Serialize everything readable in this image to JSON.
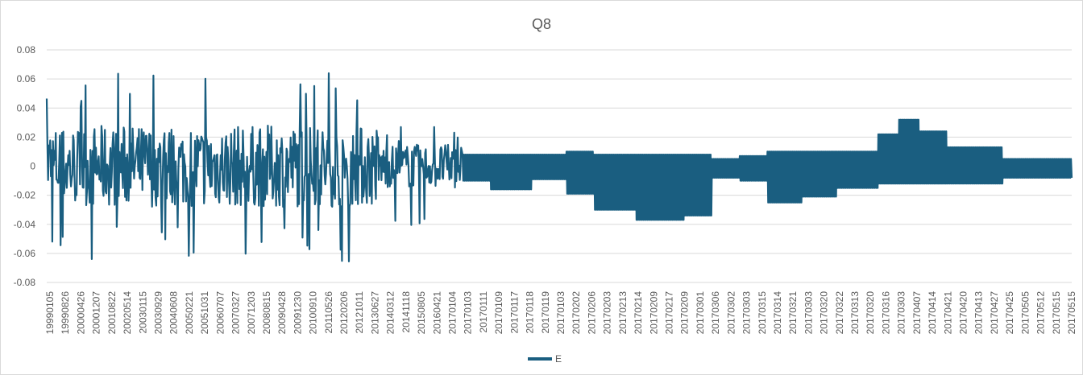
{
  "chart_data": {
    "type": "line",
    "title": "Q8",
    "xlabel": "",
    "ylabel": "",
    "ylim": [
      -0.08,
      0.08
    ],
    "y_ticks": [
      "0.08",
      "0.06",
      "0.04",
      "0.02",
      "0",
      "-0.02",
      "-0.04",
      "-0.06",
      "-0.08"
    ],
    "grid": true,
    "legend_position": "bottom",
    "series": [
      {
        "name": "E",
        "color": "#1a5e80"
      }
    ],
    "x_tick_labels": [
      "19990105",
      "19990826",
      "20000426",
      "20001207",
      "20010822",
      "20020514",
      "20030115",
      "20030929",
      "20040608",
      "20050221",
      "20051031",
      "20060707",
      "20070327",
      "20071203",
      "20080815",
      "20090428",
      "20091230",
      "20100910",
      "20110526",
      "20120206",
      "20121011",
      "20130627",
      "20140312",
      "20141118",
      "20150805",
      "20160421",
      "20170104",
      "20170103",
      "20170111",
      "20170109",
      "20170117",
      "20170118",
      "20170119",
      "20170103",
      "20170202",
      "20170206",
      "20170203",
      "20170213",
      "20170214",
      "20170209",
      "20170217",
      "20170209",
      "20170301",
      "20170306",
      "20170302",
      "20170303",
      "20170315",
      "20170314",
      "20170321",
      "20170303",
      "20170320",
      "20170322",
      "20170313",
      "20170320",
      "20170316",
      "20170303",
      "20170407",
      "20170414",
      "20170421",
      "20170420",
      "20170413",
      "20170427",
      "20170425",
      "20170505",
      "20170512",
      "20170515",
      "20170515"
    ],
    "segments": [
      {
        "from": 0,
        "to": 480,
        "amp": 0.028,
        "spike_max": 0.065,
        "spike_min": -0.066
      },
      {
        "from": 480,
        "to": 600,
        "amp": 0.015,
        "spike_max": 0.028,
        "spike_min": -0.049
      },
      {
        "from": 600,
        "to": 640,
        "hi": 0.008,
        "lo": -0.01
      },
      {
        "from": 640,
        "to": 700,
        "hi": 0.008,
        "lo": -0.016
      },
      {
        "from": 700,
        "to": 750,
        "hi": 0.008,
        "lo": -0.009
      },
      {
        "from": 750,
        "to": 790,
        "hi": 0.01,
        "lo": -0.019
      },
      {
        "from": 790,
        "to": 850,
        "hi": 0.008,
        "lo": -0.03
      },
      {
        "from": 850,
        "to": 920,
        "hi": 0.008,
        "lo": -0.037
      },
      {
        "from": 920,
        "to": 960,
        "hi": 0.008,
        "lo": -0.034
      },
      {
        "from": 960,
        "to": 1000,
        "hi": 0.005,
        "lo": -0.008
      },
      {
        "from": 1000,
        "to": 1040,
        "hi": 0.007,
        "lo": -0.01
      },
      {
        "from": 1040,
        "to": 1090,
        "hi": 0.01,
        "lo": -0.025
      },
      {
        "from": 1090,
        "to": 1140,
        "hi": 0.01,
        "lo": -0.021
      },
      {
        "from": 1140,
        "to": 1200,
        "hi": 0.01,
        "lo": -0.015
      },
      {
        "from": 1200,
        "to": 1230,
        "hi": 0.022,
        "lo": -0.012
      },
      {
        "from": 1230,
        "to": 1260,
        "hi": 0.032,
        "lo": -0.012
      },
      {
        "from": 1260,
        "to": 1300,
        "hi": 0.024,
        "lo": -0.012
      },
      {
        "from": 1300,
        "to": 1380,
        "hi": 0.013,
        "lo": -0.012
      },
      {
        "from": 1380,
        "to": 1480,
        "hi": 0.005,
        "lo": -0.008
      }
    ]
  }
}
